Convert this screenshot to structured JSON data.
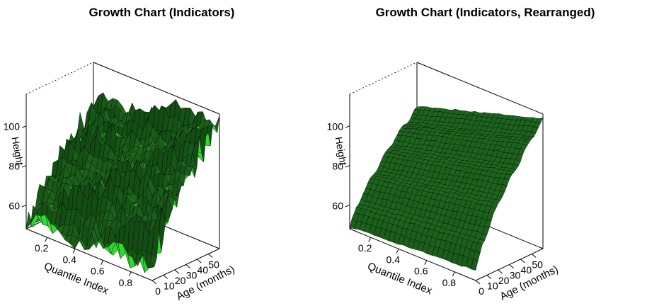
{
  "chart_data": [
    {
      "type": "surface",
      "title": "Growth Chart (Indicators)",
      "xlabel": "Quantile Index",
      "ylabel": "Age (months)",
      "zlabel": "Height",
      "x_ticks": [
        "0.2",
        "0.4",
        "0.6",
        "0.8"
      ],
      "y_ticks": [
        "0",
        "10",
        "20",
        "30",
        "40",
        "50"
      ],
      "z_ticks": [
        "60",
        "80",
        "100"
      ],
      "xlim": [
        0.05,
        0.95
      ],
      "ylim": [
        0,
        60
      ],
      "zlim": [
        48,
        116
      ],
      "surface_color": "#1f6b1f",
      "highlight_color": "#33ee33",
      "noisy": true,
      "ridges": [
        {
          "age": 0,
          "low": 49,
          "high": 53
        },
        {
          "age": 6,
          "low": 57,
          "high": 64
        },
        {
          "age": 12,
          "low": 63,
          "high": 72
        },
        {
          "age": 18,
          "low": 68,
          "high": 79
        },
        {
          "age": 24,
          "low": 72,
          "high": 85
        },
        {
          "age": 30,
          "low": 76,
          "high": 90
        },
        {
          "age": 36,
          "low": 80,
          "high": 95
        },
        {
          "age": 42,
          "low": 84,
          "high": 100
        },
        {
          "age": 48,
          "low": 87,
          "high": 105
        },
        {
          "age": 54,
          "low": 90,
          "high": 109
        },
        {
          "age": 60,
          "low": 93,
          "high": 113
        }
      ]
    },
    {
      "type": "surface",
      "title": "Growth Chart (Indicators, Rearranged)",
      "xlabel": "Quantile Index",
      "ylabel": "Age (months)",
      "zlabel": "Height",
      "x_ticks": [
        "0.2",
        "0.4",
        "0.6",
        "0.8"
      ],
      "y_ticks": [
        "0",
        "10",
        "20",
        "30",
        "40",
        "50"
      ],
      "z_ticks": [
        "60",
        "80",
        "100"
      ],
      "xlim": [
        0.05,
        0.95
      ],
      "ylim": [
        0,
        60
      ],
      "zlim": [
        48,
        116
      ],
      "surface_color": "#1f6b1f",
      "highlight_color": "#33ee33",
      "noisy": false,
      "ridges": [
        {
          "age": 0,
          "low": 49,
          "high": 53
        },
        {
          "age": 6,
          "low": 57,
          "high": 64
        },
        {
          "age": 12,
          "low": 63,
          "high": 72
        },
        {
          "age": 18,
          "low": 68,
          "high": 79
        },
        {
          "age": 24,
          "low": 72,
          "high": 85
        },
        {
          "age": 30,
          "low": 76,
          "high": 90
        },
        {
          "age": 36,
          "low": 80,
          "high": 95
        },
        {
          "age": 42,
          "low": 84,
          "high": 100
        },
        {
          "age": 48,
          "low": 87,
          "high": 105
        },
        {
          "age": 54,
          "low": 90,
          "high": 109
        },
        {
          "age": 60,
          "low": 93,
          "high": 113
        }
      ]
    }
  ]
}
